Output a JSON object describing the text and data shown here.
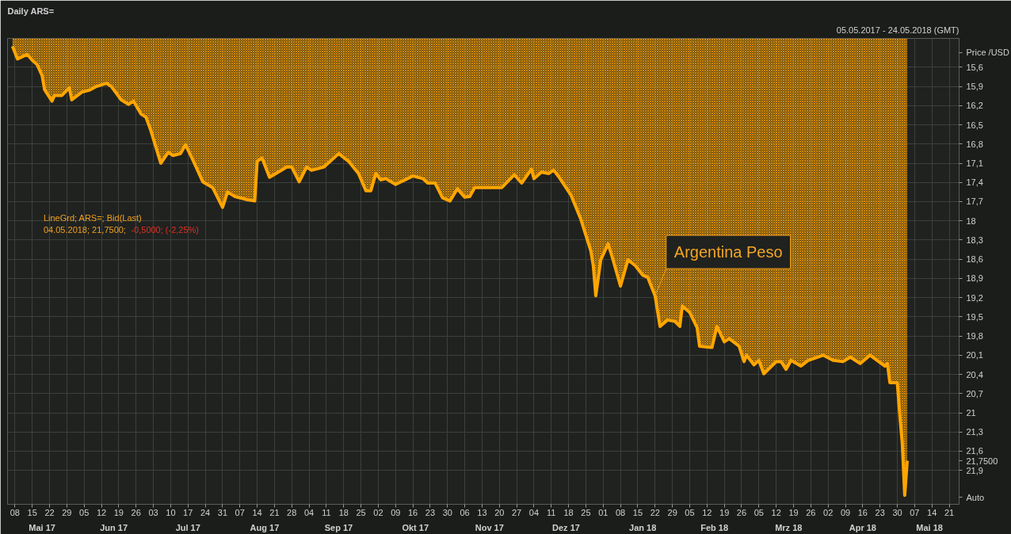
{
  "chart_data": {
    "type": "area",
    "title": "Daily ARS=",
    "subtitle": "05.05.2017 - 24.05.2018 (GMT)",
    "ylabel": "Price /USD",
    "x": [
      "2017-05-07",
      "2017-05-09",
      "2017-05-13",
      "2017-05-15",
      "2017-05-17",
      "2017-05-19",
      "2017-05-20",
      "2017-05-23",
      "2017-05-24",
      "2017-05-27",
      "2017-05-30",
      "2017-05-31",
      "2017-06-04",
      "2017-06-07",
      "2017-06-10",
      "2017-06-14",
      "2017-06-16",
      "2017-06-20",
      "2017-06-23",
      "2017-06-25",
      "2017-06-28",
      "2017-06-30",
      "2017-07-02",
      "2017-07-06",
      "2017-07-09",
      "2017-07-11",
      "2017-07-14",
      "2017-07-16",
      "2017-07-19",
      "2017-07-23",
      "2017-07-27",
      "2017-07-31",
      "2017-08-02",
      "2017-08-05",
      "2017-08-10",
      "2017-08-13",
      "2017-08-14",
      "2017-08-16",
      "2017-08-19",
      "2017-08-26",
      "2017-08-28",
      "2017-08-31",
      "2017-09-03",
      "2017-09-05",
      "2017-09-10",
      "2017-09-16",
      "2017-09-20",
      "2017-09-24",
      "2017-09-27",
      "2017-09-29",
      "2017-10-01",
      "2017-10-03",
      "2017-10-05",
      "2017-10-09",
      "2017-10-16",
      "2017-10-20",
      "2017-10-22",
      "2017-10-25",
      "2017-10-28",
      "2017-10-31",
      "2017-11-03",
      "2017-11-06",
      "2017-11-08",
      "2017-11-10",
      "2017-11-16",
      "2017-11-21",
      "2017-11-26",
      "2017-11-29",
      "2017-12-03",
      "2017-12-04",
      "2017-12-07",
      "2017-12-10",
      "2017-12-12",
      "2017-12-14",
      "2017-12-19",
      "2017-12-23",
      "2017-12-27",
      "2017-12-28",
      "2017-12-29",
      "2017-12-31",
      "2018-01-03",
      "2018-01-05",
      "2018-01-08",
      "2018-01-11",
      "2018-01-14",
      "2018-01-17",
      "2018-01-19",
      "2018-01-22",
      "2018-01-24",
      "2018-01-27",
      "2018-01-30",
      "2018-02-01",
      "2018-02-02",
      "2018-02-05",
      "2018-02-08",
      "2018-02-09",
      "2018-02-14",
      "2018-02-16",
      "2018-02-19",
      "2018-02-21",
      "2018-02-25",
      "2018-02-27",
      "2018-02-28",
      "2018-03-03",
      "2018-03-05",
      "2018-03-07",
      "2018-03-12",
      "2018-03-14",
      "2018-03-16",
      "2018-03-18",
      "2018-03-22",
      "2018-03-25",
      "2018-03-31",
      "2018-04-04",
      "2018-04-08",
      "2018-04-11",
      "2018-04-15",
      "2018-04-19",
      "2018-04-25",
      "2018-04-26",
      "2018-04-27",
      "2018-04-30",
      "2018-05-01",
      "2018-05-02",
      "2018-05-03",
      "2018-05-04"
    ],
    "series": [
      {
        "color": "#ffa500",
        "values": [
          15.27,
          15.47,
          15.4,
          15.49,
          15.56,
          15.73,
          15.95,
          16.13,
          16.04,
          16.04,
          15.92,
          16.11,
          15.99,
          15.96,
          15.9,
          15.85,
          15.9,
          16.11,
          16.18,
          16.13,
          16.33,
          16.38,
          16.59,
          17.1,
          16.93,
          16.98,
          16.95,
          16.81,
          17.05,
          17.39,
          17.48,
          17.79,
          17.55,
          17.62,
          17.67,
          17.69,
          17.07,
          17.02,
          17.32,
          17.16,
          17.16,
          17.39,
          17.16,
          17.21,
          17.16,
          16.95,
          17.07,
          17.26,
          17.53,
          17.53,
          17.26,
          17.36,
          17.34,
          17.43,
          17.3,
          17.34,
          17.41,
          17.41,
          17.64,
          17.69,
          17.5,
          17.63,
          17.62,
          17.48,
          17.48,
          17.48,
          17.28,
          17.41,
          17.19,
          17.34,
          17.24,
          17.26,
          17.21,
          17.31,
          17.6,
          17.98,
          18.47,
          18.7,
          19.17,
          18.61,
          18.36,
          18.61,
          19.02,
          18.61,
          18.7,
          18.85,
          18.88,
          19.17,
          19.65,
          19.55,
          19.57,
          19.65,
          19.33,
          19.43,
          19.67,
          19.96,
          19.98,
          19.65,
          19.89,
          19.84,
          19.96,
          20.2,
          20.1,
          20.25,
          20.18,
          20.39,
          20.2,
          20.2,
          20.32,
          20.18,
          20.27,
          20.18,
          20.1,
          20.18,
          20.2,
          20.13,
          20.23,
          20.1,
          20.27,
          20.23,
          20.53,
          20.53,
          21.03,
          21.47,
          22.29,
          21.75
        ]
      }
    ],
    "xlim": [
      "2017-05-05",
      "2018-05-25"
    ],
    "ylim": [
      22.43,
      15.15
    ],
    "xticks": [
      {
        "value": "2017-05-08",
        "label": "08"
      },
      {
        "value": "2017-05-15",
        "label": "15"
      },
      {
        "value": "2017-05-22",
        "label": "22"
      },
      {
        "value": "2017-05-29",
        "label": "29"
      },
      {
        "value": "2017-06-05",
        "label": "05"
      },
      {
        "value": "2017-06-12",
        "label": "12"
      },
      {
        "value": "2017-06-19",
        "label": "19"
      },
      {
        "value": "2017-06-26",
        "label": "26"
      },
      {
        "value": "2017-07-03",
        "label": "03"
      },
      {
        "value": "2017-07-10",
        "label": "10"
      },
      {
        "value": "2017-07-17",
        "label": "17"
      },
      {
        "value": "2017-07-24",
        "label": "24"
      },
      {
        "value": "2017-07-31",
        "label": "31"
      },
      {
        "value": "2017-08-07",
        "label": "07"
      },
      {
        "value": "2017-08-14",
        "label": "14"
      },
      {
        "value": "2017-08-21",
        "label": "21"
      },
      {
        "value": "2017-08-28",
        "label": "28"
      },
      {
        "value": "2017-09-04",
        "label": "04"
      },
      {
        "value": "2017-09-11",
        "label": "11"
      },
      {
        "value": "2017-09-18",
        "label": "18"
      },
      {
        "value": "2017-09-25",
        "label": "25"
      },
      {
        "value": "2017-10-02",
        "label": "02"
      },
      {
        "value": "2017-10-09",
        "label": "09"
      },
      {
        "value": "2017-10-16",
        "label": "16"
      },
      {
        "value": "2017-10-23",
        "label": "23"
      },
      {
        "value": "2017-10-30",
        "label": "30"
      },
      {
        "value": "2017-11-06",
        "label": "06"
      },
      {
        "value": "2017-11-13",
        "label": "13"
      },
      {
        "value": "2017-11-20",
        "label": "20"
      },
      {
        "value": "2017-11-27",
        "label": "27"
      },
      {
        "value": "2017-12-04",
        "label": "04"
      },
      {
        "value": "2017-12-11",
        "label": "11"
      },
      {
        "value": "2017-12-18",
        "label": "18"
      },
      {
        "value": "2017-12-25",
        "label": "25"
      },
      {
        "value": "2018-01-01",
        "label": "01"
      },
      {
        "value": "2018-01-08",
        "label": "08"
      },
      {
        "value": "2018-01-15",
        "label": "15"
      },
      {
        "value": "2018-01-22",
        "label": "22"
      },
      {
        "value": "2018-01-29",
        "label": "29"
      },
      {
        "value": "2018-02-05",
        "label": "05"
      },
      {
        "value": "2018-02-12",
        "label": "12"
      },
      {
        "value": "2018-02-19",
        "label": "19"
      },
      {
        "value": "2018-02-26",
        "label": "26"
      },
      {
        "value": "2018-03-05",
        "label": "05"
      },
      {
        "value": "2018-03-12",
        "label": "12"
      },
      {
        "value": "2018-03-19",
        "label": "19"
      },
      {
        "value": "2018-03-26",
        "label": "26"
      },
      {
        "value": "2018-04-02",
        "label": "02"
      },
      {
        "value": "2018-04-09",
        "label": "09"
      },
      {
        "value": "2018-04-16",
        "label": "16"
      },
      {
        "value": "2018-04-23",
        "label": "23"
      },
      {
        "value": "2018-04-30",
        "label": "30"
      },
      {
        "value": "2018-05-07",
        "label": "07"
      },
      {
        "value": "2018-05-14",
        "label": "14"
      },
      {
        "value": "2018-05-21",
        "label": "21"
      }
    ],
    "x2lim": [
      "2017-05-05",
      "2018-05-25"
    ],
    "x2ticks": [
      {
        "value": "2017-05-19",
        "label": "Mai 17"
      },
      {
        "value": "2017-06-17",
        "label": "Jun 17"
      },
      {
        "value": "2017-07-17",
        "label": "Jul 17"
      },
      {
        "value": "2017-08-17",
        "label": "Aug 17"
      },
      {
        "value": "2017-09-16",
        "label": "Sep 17"
      },
      {
        "value": "2017-10-17",
        "label": "Okt 17"
      },
      {
        "value": "2017-11-16",
        "label": "Nov 17"
      },
      {
        "value": "2017-12-17",
        "label": "Dez 17"
      },
      {
        "value": "2018-01-17",
        "label": "Jan 18"
      },
      {
        "value": "2018-02-15",
        "label": "Feb 18"
      },
      {
        "value": "2018-03-17",
        "label": "Mrz 18"
      },
      {
        "value": "2018-04-16",
        "label": "Apr 18"
      },
      {
        "value": "2018-05-13",
        "label": "Mai 18"
      }
    ],
    "yticks": [
      {
        "value": 15.6,
        "label": "15,6"
      },
      {
        "value": 15.9,
        "label": "15,9"
      },
      {
        "value": 16.2,
        "label": "16,2"
      },
      {
        "value": 16.5,
        "label": "16,5"
      },
      {
        "value": 16.8,
        "label": "16,8"
      },
      {
        "value": 17.1,
        "label": "17,1"
      },
      {
        "value": 17.4,
        "label": "17,4"
      },
      {
        "value": 17.7,
        "label": "17,7"
      },
      18,
      {
        "value": 18.3,
        "label": "18,3"
      },
      {
        "value": 18.6,
        "label": "18,6"
      },
      {
        "value": 18.9,
        "label": "18,9"
      },
      {
        "value": 19.2,
        "label": "19,2"
      },
      {
        "value": 19.5,
        "label": "19,5"
      },
      {
        "value": 19.8,
        "label": "19,8"
      },
      {
        "value": 20.1,
        "label": "20,1"
      },
      {
        "value": 20.4,
        "label": "20,4"
      },
      {
        "value": 20.7,
        "label": "20,7"
      },
      21,
      {
        "value": 21.3,
        "label": "21,3"
      },
      {
        "value": 21.6,
        "label": "21,6"
      },
      {
        "value": 21.9,
        "label": "21,9"
      }
    ],
    "grid": true,
    "annotations": [
      "LineGrd; ARS=; Bid(Last)",
      "04.05.2018; 21,7500;",
      "-0,5000; (-2,25%)",
      "Auto",
      "21,7500",
      {
        "text": "Argentina Peso",
        "x": "2018-01-22",
        "y": 19.17
      }
    ]
  }
}
